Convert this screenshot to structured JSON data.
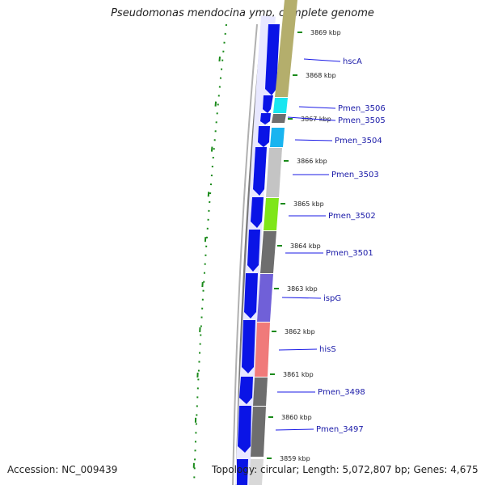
{
  "title": "Pseudomonas mendocina ymp, complete genome",
  "footer": {
    "accession": "Accession: NC_009439",
    "topology": "Topology: circular; Length: 5,072,807 bp; Genes: 4,675"
  },
  "colors": {
    "cds_strand": "#0a14e6",
    "label_line": "#1a1ae6",
    "tick": "#1a8a1a",
    "backbone": "#7a7a7a"
  },
  "kbp_ticks": [
    "3869 kbp",
    "3868 kbp",
    "3867 kbp",
    "3866 kbp",
    "3865 kbp",
    "3864 kbp",
    "3863 kbp",
    "3862 kbp",
    "3861 kbp",
    "3860 kbp",
    "3859 kbp"
  ],
  "genes": [
    {
      "label": "hscA",
      "color": "#b4ae6c"
    },
    {
      "label": "Pmen_3506",
      "color": "#19e6f0"
    },
    {
      "label": "Pmen_3505",
      "color": "#6e6e6e"
    },
    {
      "label": "Pmen_3504",
      "color": "#19b4f0"
    },
    {
      "label": "Pmen_3503",
      "color": "#c4c4c4"
    },
    {
      "label": "Pmen_3502",
      "color": "#7fe619"
    },
    {
      "label": "Pmen_3501",
      "color": "#6e6e6e"
    },
    {
      "label": "ispG",
      "color": "#7060d8"
    },
    {
      "label": "hisS",
      "color": "#f07a7a"
    },
    {
      "label": "Pmen_3498",
      "color": "#6e6e6e"
    },
    {
      "label": "Pmen_3497",
      "color": "#6e6e6e"
    }
  ]
}
